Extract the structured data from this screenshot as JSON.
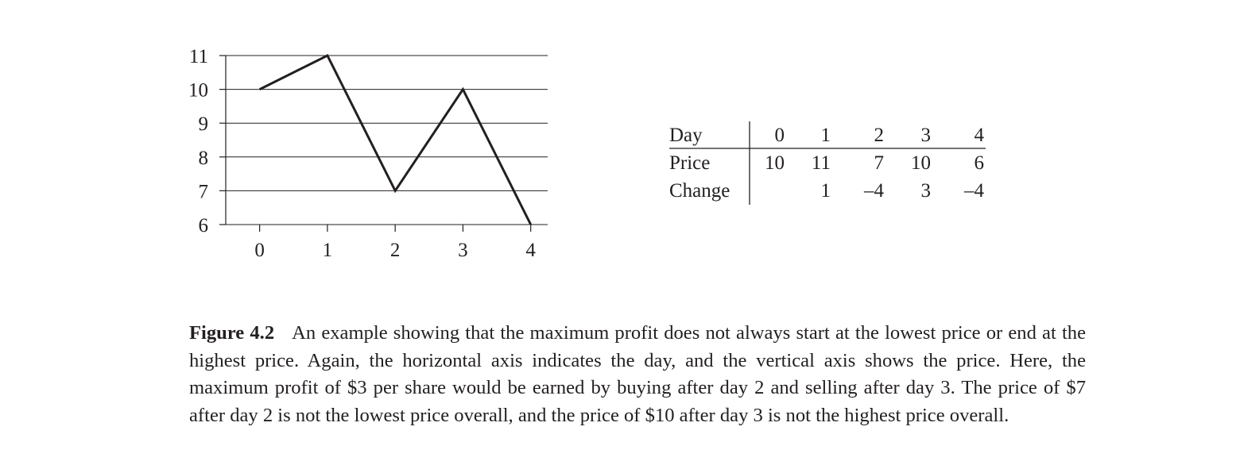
{
  "chart_data": [
    {
      "type": "line",
      "x": [
        0,
        1,
        2,
        3,
        4
      ],
      "values": [
        10,
        11,
        7,
        10,
        6
      ],
      "xlim": [
        -0.5,
        4.25
      ],
      "ylim": [
        6,
        11
      ],
      "xticks": [
        "0",
        "1",
        "2",
        "3",
        "4"
      ],
      "yticks": [
        "6",
        "7",
        "8",
        "9",
        "10",
        "11"
      ],
      "grid": "horizontal",
      "color": "#231f20"
    },
    {
      "type": "table",
      "columns": [
        "Day",
        "0",
        "1",
        "2",
        "3",
        "4"
      ],
      "rows": [
        [
          "Price",
          "10",
          "11",
          "7",
          "10",
          "6"
        ],
        [
          "Change",
          "",
          "1",
          "–4",
          "3",
          "–4"
        ]
      ]
    }
  ],
  "caption": {
    "label": "Figure 4.2",
    "text": "An example showing that the maximum profit does not always start at the lowest price or end at the highest price. Again, the horizontal axis indicates the day, and the vertical axis shows the price. Here, the maximum profit of $3 per share would be earned by buying after day 2 and selling after day 3. The price of $7 after day 2 is not the lowest price overall, and the price of $10 after day 3 is not the highest price overall."
  }
}
